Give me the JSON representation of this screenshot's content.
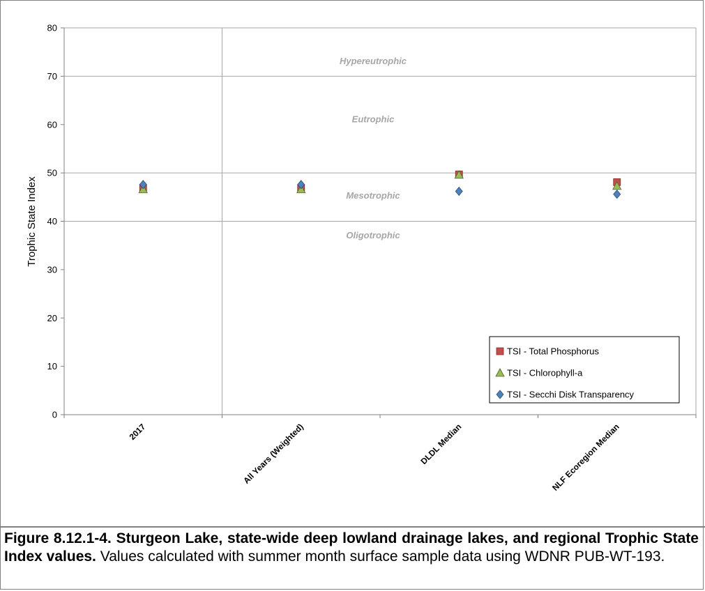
{
  "chart_data": {
    "type": "scatter",
    "ylabel": "Trophic State Index",
    "ylim": [
      0,
      80
    ],
    "yticks": [
      0,
      10,
      20,
      30,
      40,
      50,
      60,
      70,
      80
    ],
    "grid": true,
    "legend_position": "bottom-right",
    "categories": [
      "2017",
      "All Years (Weighted)",
      "DLDL Median",
      "NLF Ecoregion Median"
    ],
    "series": [
      {
        "name": "TSI - Total Phosphorus",
        "marker": "square",
        "color": "#c0504d",
        "values": [
          46.9,
          46.9,
          49.7,
          48.1
        ]
      },
      {
        "name": "TSI - Chlorophyll-a",
        "marker": "triangle",
        "color": "#9bbb59",
        "values": [
          46.6,
          46.6,
          49.6,
          47.3
        ]
      },
      {
        "name": "TSI - Secchi Disk Transparency",
        "marker": "diamond",
        "color": "#4f81bd",
        "values": [
          47.6,
          47.6,
          46.2,
          45.6
        ]
      }
    ],
    "zones": [
      {
        "label": "Hypereutrophic",
        "y": 72.5
      },
      {
        "label": "Eutrophic",
        "y": 60.5
      },
      {
        "label": "Mesotrophic",
        "y": 44.7
      },
      {
        "label": "Oligotrophic",
        "y": 36.5
      }
    ],
    "zone_boundaries": [
      40,
      50,
      70
    ]
  },
  "caption": {
    "bold": "Figure 8.12.1-4.  Sturgeon Lake, state-wide deep lowland drainage lakes, and regional Trophic State Index values.",
    "text": "Values calculated with summer month surface sample data using WDNR PUB-WT-193."
  }
}
